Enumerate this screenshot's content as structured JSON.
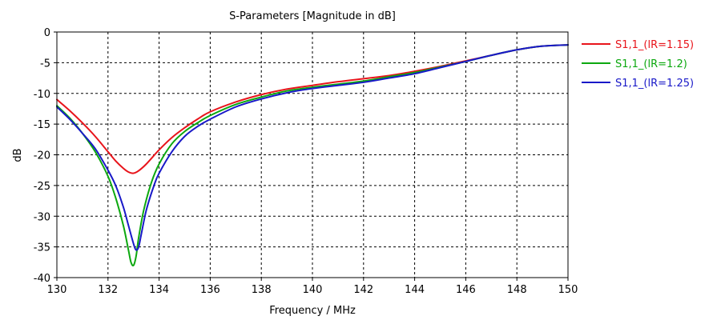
{
  "chart_data": {
    "type": "line",
    "title": "S-Parameters [Magnitude in dB]",
    "xlabel": "Frequency / MHz",
    "ylabel": "dB",
    "xlim": [
      130,
      150
    ],
    "ylim": [
      -40,
      0
    ],
    "xticks": [
      "130",
      "132",
      "134",
      "136",
      "138",
      "140",
      "142",
      "144",
      "146",
      "148",
      "150"
    ],
    "yticks": [
      "0",
      "-5",
      "-10",
      "-15",
      "-20",
      "-25",
      "-30",
      "-35",
      "-40"
    ],
    "grid": true,
    "legend_position": "right",
    "series": [
      {
        "name": "S1,1_(lR=1.15)",
        "color": "#e8141b",
        "x": [
          130,
          130.5,
          131,
          131.5,
          132,
          132.3,
          132.6,
          132.8,
          133.0,
          133.2,
          133.5,
          134,
          134.5,
          135,
          135.5,
          136,
          137,
          138,
          139,
          140,
          141,
          142,
          143,
          144,
          145,
          146,
          147,
          148,
          149,
          150
        ],
        "y": [
          -11.0,
          -12.8,
          -14.8,
          -17.0,
          -19.5,
          -21.0,
          -22.2,
          -22.8,
          -23.0,
          -22.6,
          -21.5,
          -19.2,
          -17.2,
          -15.6,
          -14.2,
          -13.0,
          -11.4,
          -10.2,
          -9.3,
          -8.7,
          -8.1,
          -7.6,
          -7.1,
          -6.4,
          -5.6,
          -4.7,
          -3.8,
          -2.9,
          -2.3,
          -2.1
        ]
      },
      {
        "name": "S1,1_(lR=1.2)",
        "color": "#0ca80f",
        "x": [
          130,
          130.5,
          131,
          131.5,
          132,
          132.3,
          132.6,
          132.8,
          132.9,
          133.0,
          133.1,
          133.2,
          133.4,
          133.7,
          134,
          134.5,
          135,
          135.5,
          136,
          137,
          138,
          139,
          140,
          141,
          142,
          143,
          144,
          145,
          146,
          147,
          148,
          149,
          150
        ],
        "y": [
          -12.0,
          -14.0,
          -16.5,
          -19.5,
          -23.5,
          -27.0,
          -31.5,
          -35.5,
          -37.5,
          -38.0,
          -36.5,
          -33.5,
          -29.0,
          -24.5,
          -21.5,
          -18.2,
          -16.2,
          -14.8,
          -13.6,
          -11.8,
          -10.6,
          -9.6,
          -9.0,
          -8.5,
          -8.0,
          -7.3,
          -6.6,
          -5.7,
          -4.8,
          -3.8,
          -2.9,
          -2.3,
          -2.1
        ]
      },
      {
        "name": "S1,1_(lR=1.25)",
        "color": "#1919c8",
        "x": [
          130,
          130.5,
          131,
          131.5,
          132,
          132.3,
          132.6,
          132.8,
          133.0,
          133.1,
          133.2,
          133.3,
          133.5,
          133.8,
          134,
          134.5,
          135,
          135.5,
          136,
          137,
          138,
          139,
          140,
          141,
          142,
          143,
          144,
          145,
          146,
          147,
          148,
          149,
          150
        ],
        "y": [
          -12.2,
          -14.2,
          -16.5,
          -19.0,
          -22.5,
          -25.0,
          -28.5,
          -31.5,
          -34.5,
          -35.5,
          -35.0,
          -33.0,
          -29.0,
          -25.0,
          -23.0,
          -19.5,
          -17.0,
          -15.4,
          -14.2,
          -12.2,
          -10.9,
          -9.9,
          -9.2,
          -8.7,
          -8.2,
          -7.5,
          -6.8,
          -5.8,
          -4.8,
          -3.8,
          -2.9,
          -2.3,
          -2.1
        ]
      }
    ]
  }
}
